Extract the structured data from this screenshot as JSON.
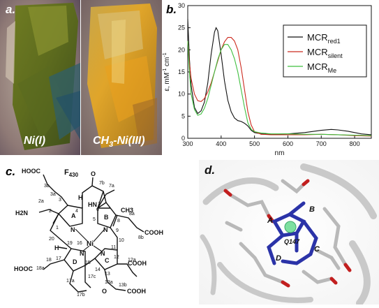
{
  "panel_a": {
    "letter": "a.",
    "label_left": "Ni(I)",
    "label_right": "CH3-Ni(III)",
    "label_right_prefix": "CH",
    "label_right_sub": "3",
    "label_right_suffix": "-Ni(III)"
  },
  "panel_b": {
    "letter": "b.",
    "chart_data": {
      "type": "line",
      "xlabel": "nm",
      "ylabel": "ε, mM⁻¹ cm⁻¹",
      "ylabel_parts": {
        "main": "ε, mM",
        "sup1": "-1",
        "mid": " cm",
        "sup2": "-1"
      },
      "xlim": [
        300,
        850
      ],
      "ylim": [
        0,
        30
      ],
      "x_ticks": [
        300,
        400,
        500,
        600,
        700,
        800
      ],
      "y_ticks": [
        0,
        5,
        10,
        15,
        20,
        25,
        30
      ],
      "legend_position": "top-right",
      "series": [
        {
          "name": "MCRred1",
          "name_main": "MCR",
          "name_sub": "red1",
          "color": "#111111",
          "x": [
            300,
            305,
            310,
            320,
            330,
            340,
            350,
            360,
            370,
            380,
            385,
            390,
            400,
            410,
            420,
            430,
            440,
            450,
            460,
            470,
            480,
            490,
            500,
            520,
            550,
            600,
            650,
            700,
            730,
            750,
            780,
            800,
            820,
            850
          ],
          "y": [
            27.0,
            18.0,
            12.0,
            7.0,
            5.6,
            6.2,
            8.2,
            12.5,
            19.0,
            24.0,
            25.0,
            24.3,
            19.0,
            13.0,
            8.6,
            6.0,
            4.6,
            4.0,
            3.8,
            3.4,
            2.8,
            1.8,
            1.3,
            1.0,
            0.9,
            1.0,
            1.3,
            1.8,
            2.0,
            1.9,
            1.6,
            1.3,
            1.0,
            0.8
          ]
        },
        {
          "name": "MCRsilent",
          "name_main": "MCR",
          "name_sub": "silent",
          "color": "#cc2a1e",
          "x": [
            300,
            305,
            310,
            320,
            330,
            340,
            350,
            360,
            370,
            380,
            390,
            400,
            410,
            420,
            430,
            440,
            450,
            460,
            470,
            480,
            490,
            500,
            520,
            550,
            600,
            650,
            700,
            750,
            800,
            850
          ],
          "y": [
            22.0,
            17.0,
            13.5,
            10.0,
            8.5,
            8.3,
            9.0,
            10.5,
            12.5,
            15.0,
            17.5,
            20.0,
            21.8,
            22.8,
            22.8,
            22.0,
            20.0,
            16.0,
            11.0,
            6.0,
            3.0,
            1.5,
            0.9,
            0.8,
            0.8,
            0.8,
            0.9,
            0.8,
            0.6,
            0.5
          ]
        },
        {
          "name": "MCRMe",
          "name_main": "MCR",
          "name_sub": "Me",
          "color": "#3fbf3f",
          "x": [
            300,
            305,
            310,
            320,
            330,
            340,
            350,
            360,
            370,
            380,
            390,
            400,
            410,
            420,
            430,
            440,
            450,
            460,
            470,
            480,
            490,
            500,
            520,
            550,
            600,
            650,
            700,
            750,
            800,
            850
          ],
          "y": [
            22.0,
            15.0,
            10.0,
            6.5,
            5.2,
            5.5,
            6.8,
            9.0,
            12.0,
            15.0,
            17.8,
            20.0,
            21.2,
            21.2,
            20.0,
            18.0,
            15.0,
            11.0,
            7.0,
            3.5,
            2.0,
            1.5,
            1.2,
            1.0,
            1.0,
            0.9,
            0.9,
            0.8,
            0.7,
            0.6
          ]
        }
      ]
    }
  },
  "panel_c": {
    "letter": "c.",
    "title": "F430",
    "title_main": "F",
    "title_sub": "430",
    "ring_letters": [
      "A",
      "B",
      "C",
      "D"
    ],
    "metal": "Ni",
    "atoms": {
      "n": "N",
      "o": "O",
      "h": "H",
      "hn": "HN"
    },
    "groups": {
      "cooh": "COOH",
      "hooc": "HOOC",
      "h2n": "H2N",
      "ch3": "CH3"
    },
    "positions": [
      "1",
      "2",
      "2a",
      "3",
      "3a",
      "3b",
      "4",
      "5",
      "6",
      "7",
      "7a",
      "7b",
      "8",
      "8a",
      "8b",
      "9",
      "10",
      "11",
      "12",
      "12a",
      "13",
      "13a",
      "13b",
      "14",
      "15",
      "16",
      "17",
      "17a",
      "17b",
      "17c",
      "18",
      "18a",
      "19",
      "20"
    ]
  },
  "panel_d": {
    "letter": "d.",
    "labels": [
      "A",
      "B",
      "C",
      "D",
      "Q147"
    ]
  }
}
